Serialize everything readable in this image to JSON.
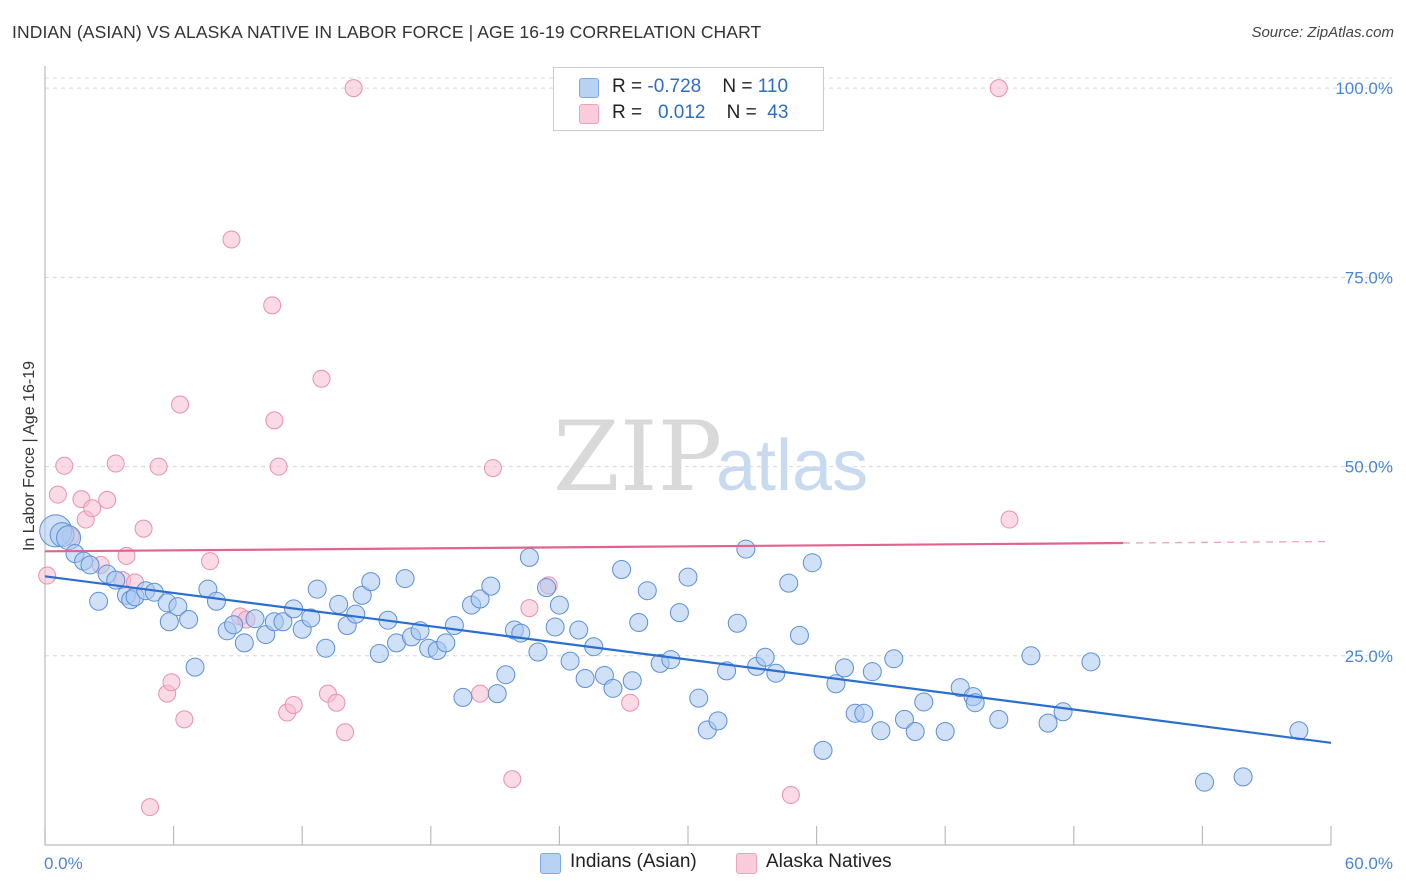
{
  "title": "INDIAN (ASIAN) VS ALASKA NATIVE IN LABOR FORCE | AGE 16-19 CORRELATION CHART",
  "source": "Source: ZipAtlas.com",
  "watermark": {
    "zip": "ZIP",
    "atlas": "atlas"
  },
  "legend": {
    "row1": {
      "r_label": "R = ",
      "r_value": "-0.728",
      "n_label": "N = ",
      "n_value": "110"
    },
    "row2": {
      "r_label": "R = ",
      "r_value": "0.012",
      "n_label": "N = ",
      "n_value": "43"
    }
  },
  "bottom_legend": {
    "series1": "Indians (Asian)",
    "series2": "Alaska Natives"
  },
  "colors": {
    "blue_fill": "#a9c8f0",
    "blue_stroke": "#5b8fd6",
    "blue_line": "#2a6fd0",
    "pink_fill": "#f6bcd0",
    "pink_stroke": "#e890b0",
    "pink_line": "#e0648e",
    "grid": "#d8d8d8",
    "axis_label": "#4a86d4"
  },
  "chart_data": {
    "type": "scatter",
    "title": "INDIAN (ASIAN) VS ALASKA NATIVE IN LABOR FORCE | AGE 16-19 CORRELATION CHART",
    "xlabel": "",
    "ylabel": "In Labor Force | Age 16-19",
    "xlim": [
      0,
      60
    ],
    "ylim": [
      0,
      102
    ],
    "x_tick_labels": [
      "0.0%",
      "60.0%"
    ],
    "y_ticks": [
      25,
      50,
      75,
      100
    ],
    "y_tick_labels": [
      "25.0%",
      "50.0%",
      "75.0%",
      "100.0%"
    ],
    "grid": true,
    "series": [
      {
        "name": "Indians (Asian)",
        "r": -0.728,
        "n": 110,
        "trend": {
          "x0": 0,
          "y0": 35.5,
          "x1": 60,
          "y1": 13.5
        },
        "points": [
          [
            0.5,
            41.5
          ],
          [
            0.8,
            41.0
          ],
          [
            1.1,
            40.6
          ],
          [
            1.4,
            38.5
          ],
          [
            1.8,
            37.5
          ],
          [
            2.1,
            37.0
          ],
          [
            2.5,
            32.2
          ],
          [
            2.9,
            35.8
          ],
          [
            3.3,
            35.0
          ],
          [
            3.8,
            33.0
          ],
          [
            4.0,
            32.4
          ],
          [
            4.2,
            32.8
          ],
          [
            4.7,
            33.6
          ],
          [
            5.1,
            33.4
          ],
          [
            5.7,
            32.0
          ],
          [
            5.8,
            29.5
          ],
          [
            6.2,
            31.5
          ],
          [
            6.7,
            29.8
          ],
          [
            7.0,
            23.5
          ],
          [
            7.6,
            33.8
          ],
          [
            8.0,
            32.2
          ],
          [
            8.5,
            28.3
          ],
          [
            8.8,
            29.1
          ],
          [
            9.3,
            26.7
          ],
          [
            9.8,
            29.9
          ],
          [
            10.3,
            27.8
          ],
          [
            10.7,
            29.5
          ],
          [
            11.1,
            29.5
          ],
          [
            11.6,
            31.2
          ],
          [
            12.0,
            28.5
          ],
          [
            12.4,
            30.0
          ],
          [
            12.7,
            33.8
          ],
          [
            13.1,
            26.0
          ],
          [
            13.7,
            31.8
          ],
          [
            14.1,
            29.0
          ],
          [
            14.5,
            30.5
          ],
          [
            14.8,
            33.0
          ],
          [
            15.2,
            34.8
          ],
          [
            15.6,
            25.3
          ],
          [
            16.0,
            29.7
          ],
          [
            16.4,
            26.7
          ],
          [
            16.8,
            35.2
          ],
          [
            17.1,
            27.5
          ],
          [
            17.5,
            28.3
          ],
          [
            17.9,
            26.0
          ],
          [
            18.3,
            25.7
          ],
          [
            18.7,
            26.7
          ],
          [
            19.1,
            29.0
          ],
          [
            19.5,
            19.5
          ],
          [
            19.9,
            31.7
          ],
          [
            20.3,
            32.5
          ],
          [
            20.8,
            34.2
          ],
          [
            21.1,
            20.0
          ],
          [
            21.5,
            22.5
          ],
          [
            21.9,
            28.4
          ],
          [
            22.2,
            28.0
          ],
          [
            22.6,
            38.0
          ],
          [
            23.0,
            25.5
          ],
          [
            23.4,
            34.0
          ],
          [
            23.8,
            28.8
          ],
          [
            24.0,
            31.7
          ],
          [
            24.5,
            24.3
          ],
          [
            24.9,
            28.4
          ],
          [
            25.2,
            22.0
          ],
          [
            25.6,
            26.2
          ],
          [
            26.1,
            22.4
          ],
          [
            26.5,
            20.7
          ],
          [
            26.9,
            36.4
          ],
          [
            27.4,
            21.7
          ],
          [
            27.7,
            29.4
          ],
          [
            28.1,
            33.6
          ],
          [
            28.7,
            24.0
          ],
          [
            29.2,
            24.5
          ],
          [
            29.6,
            30.7
          ],
          [
            30.0,
            35.4
          ],
          [
            30.5,
            19.4
          ],
          [
            30.9,
            15.2
          ],
          [
            31.4,
            16.4
          ],
          [
            31.8,
            23.0
          ],
          [
            32.3,
            29.3
          ],
          [
            32.7,
            39.1
          ],
          [
            33.2,
            23.6
          ],
          [
            33.6,
            24.8
          ],
          [
            34.1,
            22.7
          ],
          [
            34.7,
            34.6
          ],
          [
            35.2,
            27.7
          ],
          [
            35.8,
            37.3
          ],
          [
            36.3,
            12.5
          ],
          [
            36.9,
            21.3
          ],
          [
            37.3,
            23.4
          ],
          [
            37.8,
            17.4
          ],
          [
            38.2,
            17.4
          ],
          [
            38.6,
            22.9
          ],
          [
            39.0,
            15.1
          ],
          [
            39.6,
            24.6
          ],
          [
            40.1,
            16.6
          ],
          [
            40.6,
            15.0
          ],
          [
            41.0,
            18.9
          ],
          [
            42.0,
            15.0
          ],
          [
            42.7,
            20.8
          ],
          [
            43.3,
            19.6
          ],
          [
            43.4,
            18.8
          ],
          [
            44.5,
            16.6
          ],
          [
            46.0,
            25.0
          ],
          [
            46.8,
            16.1
          ],
          [
            47.5,
            17.6
          ],
          [
            48.8,
            24.2
          ],
          [
            54.1,
            8.3
          ],
          [
            55.9,
            9.0
          ],
          [
            58.5,
            15.1
          ]
        ]
      },
      {
        "name": "Alaska Natives",
        "r": 0.012,
        "n": 43,
        "trend": {
          "x0": 0,
          "y0": 38.8,
          "x1": 50.3,
          "y1": 39.9,
          "dash_to_x": 60,
          "dash_y": 40.1
        },
        "points": [
          [
            0.1,
            35.6
          ],
          [
            0.6,
            46.3
          ],
          [
            0.9,
            50.1
          ],
          [
            1.2,
            40.8
          ],
          [
            1.7,
            45.7
          ],
          [
            1.9,
            43.0
          ],
          [
            2.2,
            44.5
          ],
          [
            2.6,
            37.0
          ],
          [
            2.9,
            45.6
          ],
          [
            3.3,
            50.4
          ],
          [
            3.6,
            35.0
          ],
          [
            3.8,
            38.2
          ],
          [
            4.2,
            34.7
          ],
          [
            4.6,
            41.8
          ],
          [
            4.9,
            5.0
          ],
          [
            5.3,
            50.0
          ],
          [
            5.7,
            20.0
          ],
          [
            5.9,
            21.5
          ],
          [
            6.3,
            58.2
          ],
          [
            6.5,
            16.6
          ],
          [
            7.7,
            37.5
          ],
          [
            8.7,
            80.0
          ],
          [
            9.1,
            30.2
          ],
          [
            9.4,
            29.8
          ],
          [
            10.6,
            71.3
          ],
          [
            10.7,
            56.1
          ],
          [
            10.9,
            50.0
          ],
          [
            11.3,
            17.5
          ],
          [
            11.6,
            18.5
          ],
          [
            12.9,
            61.6
          ],
          [
            13.2,
            20.0
          ],
          [
            13.6,
            18.8
          ],
          [
            14.0,
            14.9
          ],
          [
            14.4,
            100.0
          ],
          [
            20.3,
            20.0
          ],
          [
            20.9,
            49.8
          ],
          [
            21.8,
            8.7
          ],
          [
            22.6,
            31.3
          ],
          [
            23.5,
            34.3
          ],
          [
            27.3,
            18.8
          ],
          [
            34.8,
            6.6
          ],
          [
            44.5,
            100.0
          ],
          [
            45.0,
            43.0
          ]
        ]
      }
    ]
  }
}
